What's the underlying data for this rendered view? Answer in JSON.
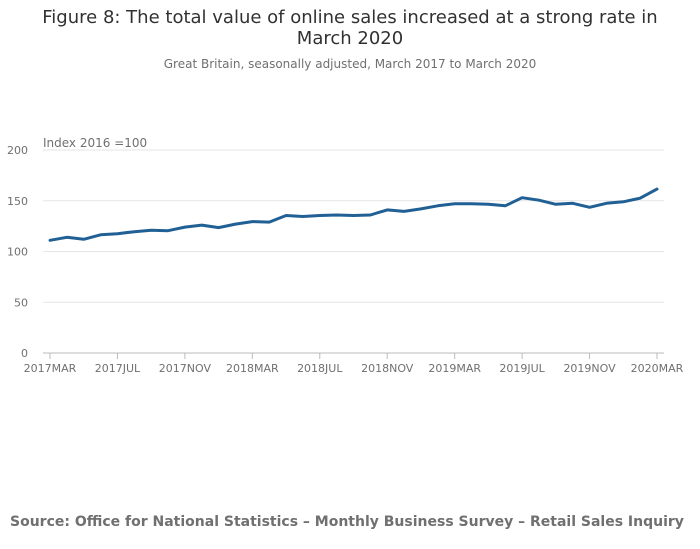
{
  "chart_data": {
    "type": "line",
    "title": "Figure 8: The total value of online sales increased at a strong rate in March 2020",
    "subtitle": "Great Britain, seasonally adjusted, March 2017 to March 2020",
    "ylabel": "Index 2016 =100",
    "xlabel": "",
    "ylim": [
      0,
      200
    ],
    "yticks": [
      0,
      50,
      100,
      150,
      200
    ],
    "xtick_labels": [
      "2017MAR",
      "2017JUL",
      "2017NOV",
      "2018MAR",
      "2018JUL",
      "2018NOV",
      "2019MAR",
      "2019JUL",
      "2019NOV",
      "2020MAR"
    ],
    "xtick_indices": [
      0,
      4,
      8,
      12,
      16,
      20,
      24,
      28,
      32,
      36
    ],
    "series": [
      {
        "name": "Index 2016 =100",
        "color": "#206095",
        "x": [
          "2017MAR",
          "2017APR",
          "2017MAY",
          "2017JUN",
          "2017JUL",
          "2017AUG",
          "2017SEP",
          "2017OCT",
          "2017NOV",
          "2017DEC",
          "2018JAN",
          "2018FEB",
          "2018MAR",
          "2018APR",
          "2018MAY",
          "2018JUN",
          "2018JUL",
          "2018AUG",
          "2018SEP",
          "2018OCT",
          "2018NOV",
          "2018DEC",
          "2019JAN",
          "2019FEB",
          "2019MAR",
          "2019APR",
          "2019MAY",
          "2019JUN",
          "2019JUL",
          "2019AUG",
          "2019SEP",
          "2019OCT",
          "2019NOV",
          "2019DEC",
          "2020JAN",
          "2020FEB",
          "2020MAR"
        ],
        "values": [
          111,
          114,
          112,
          116.5,
          117.5,
          119.5,
          121,
          120.5,
          124,
          126,
          123.5,
          127,
          129.5,
          129,
          135.5,
          134.5,
          135.5,
          136,
          135.5,
          136,
          141,
          139.5,
          142,
          145,
          147,
          147,
          146.5,
          145,
          153,
          150.5,
          146.5,
          147.5,
          143.5,
          147.5,
          149,
          152.5,
          161.5
        ]
      }
    ],
    "grid": true,
    "legend": "none"
  },
  "footer": {
    "source": "Source: Office for National Statistics – Monthly Business Survey – Retail Sales Inquiry"
  }
}
